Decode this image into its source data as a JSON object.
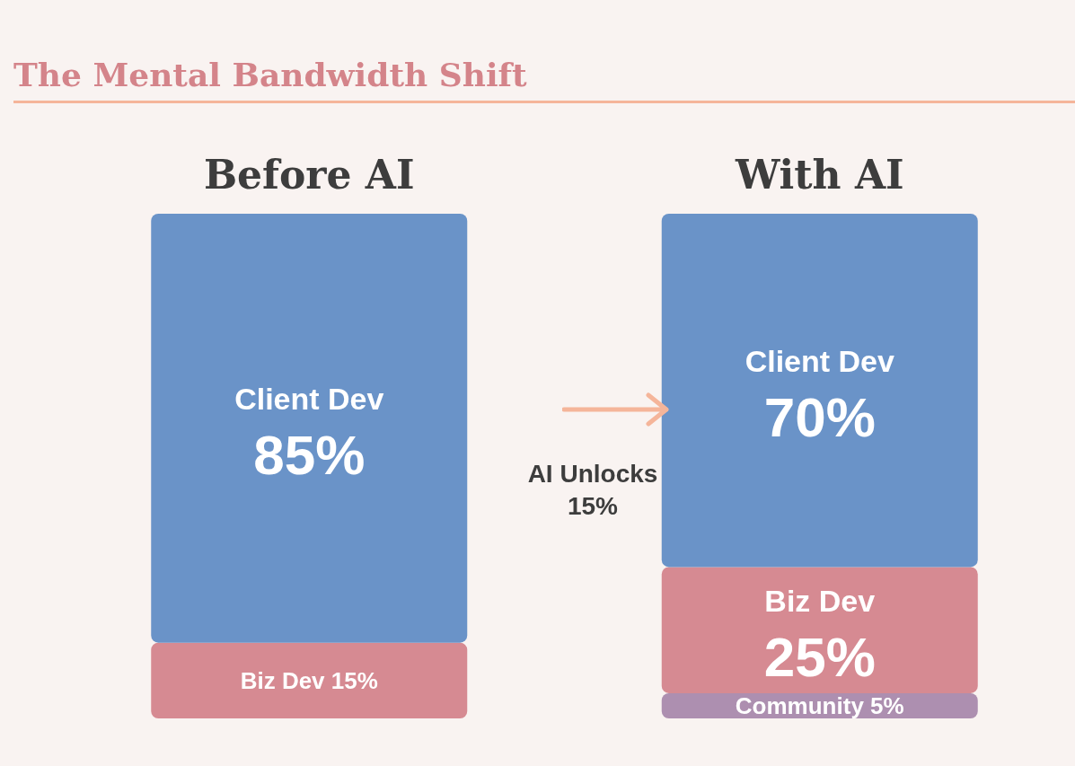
{
  "chart_data": {
    "type": "bar",
    "title": "The Mental Bandwidth Shift",
    "categories": [
      "Before AI",
      "With AI"
    ],
    "series": [
      {
        "name": "Community",
        "color": "#ad8fb0",
        "values": [
          null,
          5
        ],
        "value_labels": [
          null,
          "5%"
        ]
      },
      {
        "name": "Biz Dev",
        "color": "#d68a92",
        "values": [
          15,
          25
        ],
        "value_labels": [
          "15%",
          "25%"
        ]
      },
      {
        "name": "Client Dev",
        "color": "#6a93c8",
        "values": [
          85,
          70
        ],
        "value_labels": [
          "85%",
          "70%"
        ]
      }
    ],
    "stacked": true,
    "tick_labels": "x",
    "grid": false,
    "legend": false,
    "annotations": [
      "AI Unlocks 15%"
    ]
  }
}
